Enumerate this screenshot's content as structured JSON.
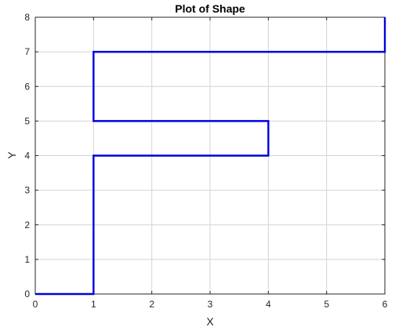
{
  "chart_data": {
    "type": "line",
    "title": "Plot of Shape",
    "xlabel": "X",
    "ylabel": "Y",
    "xlim": [
      0,
      6
    ],
    "ylim": [
      0,
      8
    ],
    "xticks": [
      0,
      1,
      2,
      3,
      4,
      5,
      6
    ],
    "yticks": [
      0,
      1,
      2,
      3,
      4,
      5,
      6,
      7,
      8
    ],
    "grid": true,
    "line_color": "#0000e0",
    "grid_color": "#d4d4d4",
    "series": [
      {
        "x": [
          0,
          1,
          1,
          4,
          4,
          1,
          1,
          6,
          6
        ],
        "y": [
          0,
          0,
          4,
          4,
          5,
          5,
          7,
          7,
          8
        ]
      }
    ]
  }
}
